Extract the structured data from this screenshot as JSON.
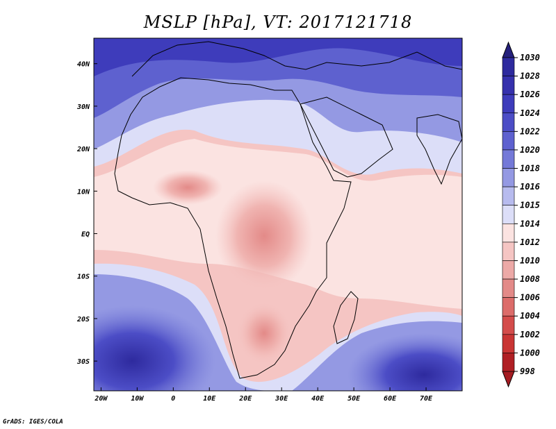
{
  "title": "MSLP [hPa], VT: 2017121718",
  "credit": "GrADS: IGES/COLA",
  "map": {
    "projection": "latlon",
    "lon_range": [
      -22,
      80
    ],
    "lat_range": [
      -37,
      46
    ],
    "lat_ticks": [
      {
        "value": 40,
        "label": "40N"
      },
      {
        "value": 30,
        "label": "30N"
      },
      {
        "value": 20,
        "label": "20N"
      },
      {
        "value": 10,
        "label": "10N"
      },
      {
        "value": 0,
        "label": "EQ"
      },
      {
        "value": -10,
        "label": "10S"
      },
      {
        "value": -20,
        "label": "20S"
      },
      {
        "value": -30,
        "label": "30S"
      }
    ],
    "lon_ticks": [
      {
        "value": -20,
        "label": "20W"
      },
      {
        "value": -10,
        "label": "10W"
      },
      {
        "value": 0,
        "label": "0"
      },
      {
        "value": 10,
        "label": "10E"
      },
      {
        "value": 20,
        "label": "20E"
      },
      {
        "value": 30,
        "label": "30E"
      },
      {
        "value": 40,
        "label": "40E"
      },
      {
        "value": 50,
        "label": "50E"
      },
      {
        "value": 60,
        "label": "60E"
      },
      {
        "value": 70,
        "label": "70E"
      }
    ]
  },
  "colorbar": {
    "levels": [
      {
        "label": "1030",
        "color": "#2a238c"
      },
      {
        "label": "1028",
        "color": "#2e2a9e"
      },
      {
        "label": "1026",
        "color": "#3631ad"
      },
      {
        "label": "1024",
        "color": "#3e3cbb"
      },
      {
        "label": "1022",
        "color": "#4c4dc6"
      },
      {
        "label": "1020",
        "color": "#5e61cf"
      },
      {
        "label": "1018",
        "color": "#7479d8"
      },
      {
        "label": "1016",
        "color": "#9499e3"
      },
      {
        "label": "1015",
        "color": "#b7bbee"
      },
      {
        "label": "1014",
        "color": "#dcdef8"
      },
      {
        "label": "1012",
        "color": "#fbe3e1"
      },
      {
        "label": "1010",
        "color": "#f5c5c3"
      },
      {
        "label": "1008",
        "color": "#eca9a7"
      },
      {
        "label": "1006",
        "color": "#e38a88"
      },
      {
        "label": "1004",
        "color": "#dc6c6a"
      },
      {
        "label": "1002",
        "color": "#d44c4b"
      },
      {
        "label": "1000",
        "color": "#c93534"
      },
      {
        "label": "998",
        "color": "#b01f24"
      }
    ],
    "top_arrow_color": "#25207c",
    "bottom_arrow_color": "#a51c22"
  }
}
